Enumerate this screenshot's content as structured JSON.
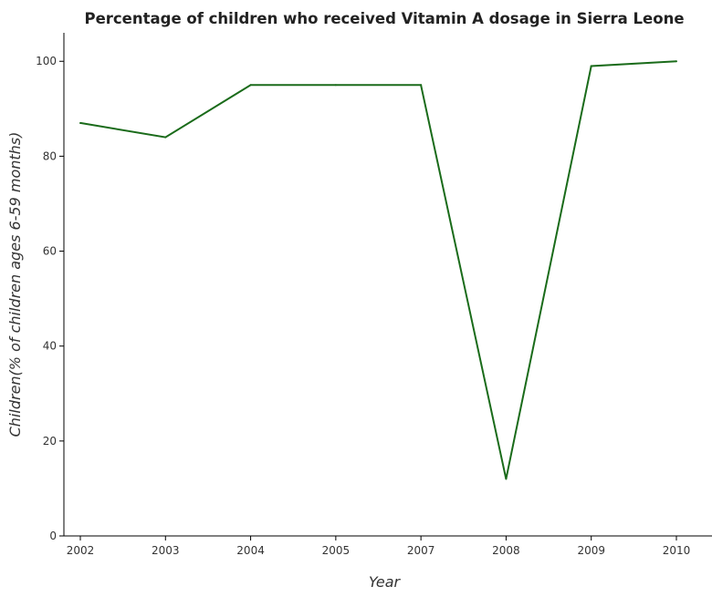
{
  "chart_data": {
    "type": "line",
    "title": "Percentage of children who received Vitamin A dosage in Sierra Leone",
    "xlabel": "Year",
    "ylabel": "Children(% of children ages 6-59 months)",
    "categories": [
      "2002",
      "2003",
      "2004",
      "2005",
      "2007",
      "2008",
      "2009",
      "2010"
    ],
    "series": [
      {
        "values": [
          87,
          84,
          95,
          95,
          95,
          12,
          99,
          100
        ],
        "color": "#1a6b1a"
      }
    ],
    "yticks": [
      0,
      20,
      40,
      60,
      80,
      100
    ],
    "ylim": [
      0,
      106
    ],
    "grid": false,
    "legend": "none"
  }
}
